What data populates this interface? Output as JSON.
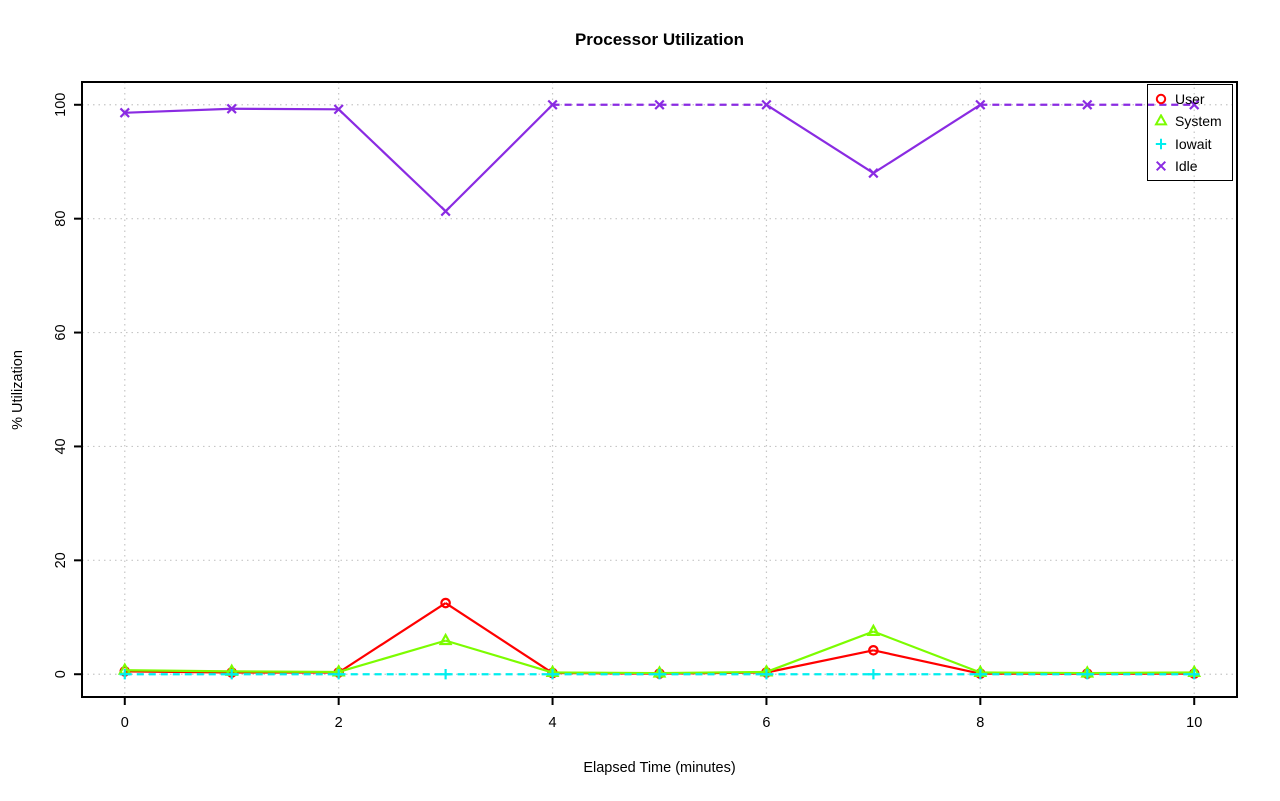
{
  "chart_data": {
    "type": "line",
    "title": "Processor Utilization",
    "xlabel": "Elapsed Time (minutes)",
    "ylabel": "% Utilization",
    "x": [
      0,
      1,
      2,
      3,
      4,
      5,
      6,
      7,
      8,
      9,
      10
    ],
    "xlim": [
      0,
      10
    ],
    "ylim": [
      0,
      100
    ],
    "xticks": [
      0,
      2,
      4,
      6,
      8,
      10
    ],
    "yticks": [
      0,
      20,
      40,
      60,
      80,
      100
    ],
    "grid": "dotted",
    "grid_color": "#c6c6c6",
    "legend_position": "top-right",
    "series": [
      {
        "name": "User",
        "color": "#ff0000",
        "marker": "circle",
        "line": "solid",
        "values": [
          0.5,
          0.3,
          0.3,
          12.5,
          0.2,
          0.1,
          0.3,
          4.2,
          0.1,
          0.1,
          0.1
        ]
      },
      {
        "name": "System",
        "color": "#7cfc00",
        "marker": "triangle",
        "line": "solid",
        "values": [
          0.7,
          0.5,
          0.4,
          5.9,
          0.3,
          0.2,
          0.4,
          7.5,
          0.3,
          0.2,
          0.3
        ]
      },
      {
        "name": "Iowait",
        "color": "#00eeee",
        "marker": "plus",
        "line": "dashed",
        "values": [
          0,
          0,
          0,
          0,
          0,
          0,
          0,
          0,
          0,
          0,
          0
        ]
      },
      {
        "name": "Idle",
        "color": "#8a2be2",
        "marker": "x",
        "line": "dashed-at-100",
        "values": [
          98.6,
          99.3,
          99.2,
          81.3,
          100,
          100,
          100,
          88,
          100,
          100,
          100
        ]
      }
    ]
  }
}
